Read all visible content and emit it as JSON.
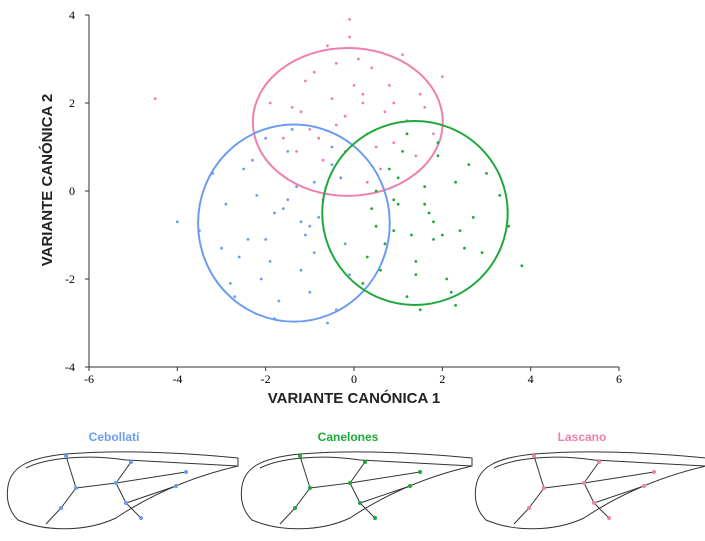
{
  "chart_data": {
    "type": "scatter",
    "xlabel": "VARIANTE CANÓNICA 1",
    "ylabel": "VARIANTE CANÓNICA 2",
    "xlim": [
      -6,
      6
    ],
    "ylim": [
      -4,
      4
    ],
    "xticks": [
      -6,
      -4,
      -2,
      0,
      2,
      4,
      6
    ],
    "yticks": [
      -4,
      -2,
      0,
      2,
      4
    ],
    "series": [
      {
        "name": "Lascano",
        "color": "#ef7fae",
        "ellipse": {
          "cx": -0.14,
          "cy": 1.57,
          "rx": 2.15,
          "ry": 1.68
        },
        "x": [
          -0.5,
          0.3,
          -1.2,
          0.8,
          -0.2,
          1.2,
          -0.9,
          0.1,
          -1.6,
          0.6,
          -0.4,
          1.5,
          -0.7,
          0.2,
          -1.1,
          0.9,
          -0.1,
          0.4,
          -1.4,
          1.8,
          -0.3,
          0.7,
          -0.8,
          0.0,
          1.1,
          -1.9,
          0.5,
          -0.6,
          1.4,
          -0.2,
          0.3,
          -1.0,
          2.0,
          -0.4,
          0.9,
          -4.5,
          -0.1,
          1.6,
          -1.3,
          0.2
        ],
        "values": [
          2.1,
          1.3,
          1.8,
          2.4,
          0.9,
          1.6,
          2.7,
          3.0,
          1.2,
          0.5,
          1.5,
          2.2,
          0.7,
          2.0,
          2.5,
          1.1,
          3.5,
          2.8,
          1.9,
          1.3,
          0.3,
          1.8,
          1.2,
          2.4,
          3.1,
          2.0,
          1.0,
          3.3,
          0.8,
          1.7,
          0.2,
          1.4,
          2.6,
          2.9,
          2.0,
          2.1,
          3.9,
          1.9,
          0.9,
          2.2
        ]
      },
      {
        "name": "Cebollatí",
        "color": "#6b9cf0",
        "ellipse": {
          "cx": -1.36,
          "cy": -0.73,
          "rx": 2.17,
          "ry": 2.24
        },
        "x": [
          -1.8,
          -0.9,
          -2.4,
          -1.2,
          -0.5,
          -2.9,
          -1.5,
          -0.2,
          -2.1,
          -1.0,
          -3.2,
          -1.7,
          -0.7,
          -2.6,
          -1.3,
          -0.1,
          -2.0,
          -1.1,
          -3.5,
          -1.6,
          -0.4,
          -2.3,
          -0.8,
          -1.9,
          -2.8,
          -1.4,
          -0.6,
          -2.2,
          -1.0,
          -3.0,
          -1.2,
          -0.3,
          -2.5,
          -1.8,
          -4.0,
          -0.9,
          -2.7,
          -1.5,
          -0.5,
          -2.0
        ],
        "values": [
          -0.5,
          0.2,
          -1.1,
          -1.8,
          0.6,
          -0.3,
          0.9,
          -1.2,
          -2.0,
          -0.8,
          0.4,
          -2.5,
          -0.2,
          -1.5,
          0.1,
          -1.9,
          1.2,
          -1.0,
          -0.9,
          -0.4,
          -2.7,
          0.7,
          -0.6,
          -1.6,
          -2.1,
          1.4,
          -3.0,
          -0.1,
          -2.3,
          -1.3,
          -0.7,
          0.3,
          0.5,
          -2.9,
          -0.7,
          -1.4,
          -2.4,
          -0.2,
          1.0,
          -1.1
        ]
      },
      {
        "name": "Canelones",
        "color": "#1fa83a",
        "ellipse": {
          "cx": 1.38,
          "cy": -0.5,
          "rx": 2.1,
          "ry": 2.09
        },
        "x": [
          1.0,
          1.8,
          0.5,
          2.3,
          1.4,
          0.8,
          2.7,
          1.2,
          1.9,
          0.3,
          2.5,
          1.6,
          0.9,
          3.0,
          1.3,
          2.1,
          0.6,
          1.7,
          2.9,
          1.1,
          2.4,
          0.4,
          1.5,
          3.3,
          1.9,
          0.7,
          2.2,
          1.0,
          2.6,
          1.4,
          3.5,
          0.2,
          1.8,
          2.0,
          1.2,
          3.8,
          0.9,
          2.3,
          1.6,
          0.5
        ],
        "values": [
          -0.3,
          -1.1,
          -0.8,
          0.2,
          -1.9,
          0.5,
          -0.6,
          -2.4,
          0.8,
          -1.5,
          -1.3,
          0.1,
          -0.2,
          0.4,
          -1.0,
          -2.0,
          -1.8,
          -0.5,
          -1.4,
          0.9,
          -0.9,
          -0.4,
          -2.7,
          -0.1,
          1.1,
          -1.2,
          -2.3,
          0.3,
          0.6,
          -1.6,
          -0.8,
          -2.1,
          -0.7,
          -1.0,
          1.3,
          -1.7,
          -0.9,
          -2.6,
          -0.3,
          0.0
        ]
      }
    ]
  }
}
